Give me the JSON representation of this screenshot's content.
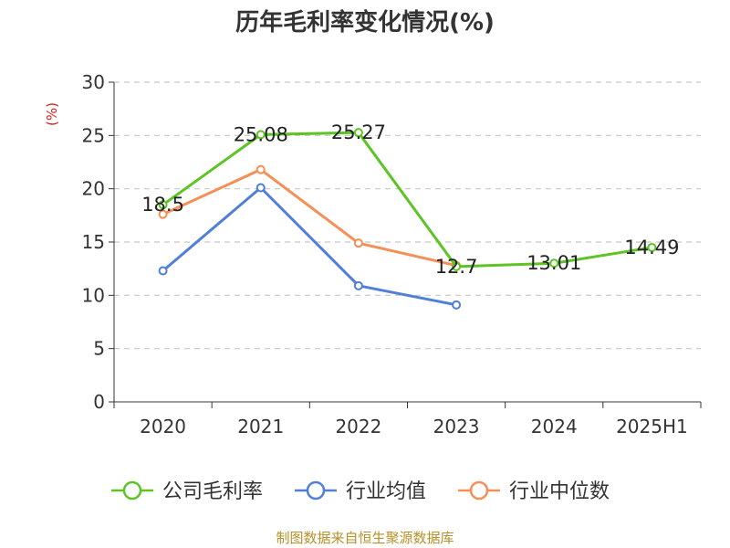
{
  "chart_data": {
    "type": "line",
    "title": "历年毛利率变化情况(%)",
    "ylabel": "(%)",
    "ylim": [
      0,
      30
    ],
    "yticks": [
      0,
      5,
      10,
      15,
      20,
      25,
      30
    ],
    "categories": [
      "2020",
      "2021",
      "2022",
      "2023",
      "2024",
      "2025H1"
    ],
    "grid": "horizontal dashed",
    "legend_position": "bottom",
    "series": [
      {
        "name": "公司毛利率",
        "color": "#5dc424",
        "values": [
          18.5,
          25.08,
          25.27,
          12.7,
          13.01,
          14.49
        ],
        "show_labels": true
      },
      {
        "name": "行业均值",
        "color": "#4f7fd9",
        "values": [
          12.3,
          20.1,
          10.9,
          9.1,
          null,
          null
        ],
        "show_labels": false
      },
      {
        "name": "行业中位数",
        "color": "#f58f55",
        "values": [
          17.6,
          21.8,
          14.9,
          12.8,
          null,
          null
        ],
        "show_labels": false
      }
    ],
    "source": "制图数据来自恒生聚源数据库"
  }
}
